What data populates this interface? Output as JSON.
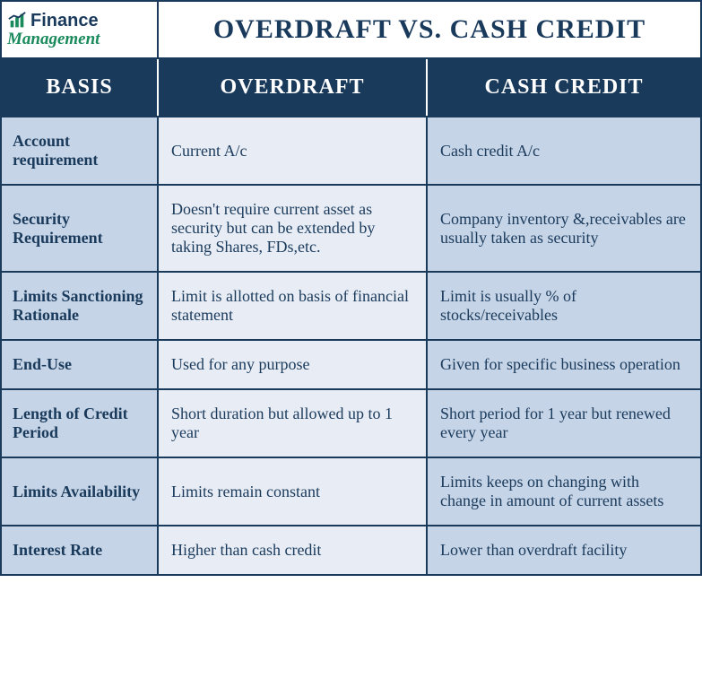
{
  "logo": {
    "line1": "Finance",
    "line2": "Management"
  },
  "title": "OVERDRAFT VS. CASH CREDIT",
  "headers": {
    "basis": "BASIS",
    "overdraft": "OVERDRAFT",
    "cashcredit": "CASH CREDIT"
  },
  "rows": [
    {
      "basis": "Account requirement",
      "overdraft": "Current A/c",
      "cashcredit": "Cash credit A/c"
    },
    {
      "basis": "Security Requirement",
      "overdraft": "Doesn't require current asset as security but can be extended by taking Shares, FDs,etc.",
      "cashcredit": "Company inventory &,receivables are usually taken as security"
    },
    {
      "basis": "Limits Sanctioning Rationale",
      "overdraft": "Limit is allotted on basis of financial statement",
      "cashcredit": "Limit is usually % of stocks/receivables"
    },
    {
      "basis": "End-Use",
      "overdraft": "Used for any purpose",
      "cashcredit": "Given for specific business operation"
    },
    {
      "basis": "Length of Credit Period",
      "overdraft": "Short duration but allowed up to 1 year",
      "cashcredit": "Short period for 1 year but renewed every year"
    },
    {
      "basis": "Limits Availability",
      "overdraft": "Limits remain constant",
      "cashcredit": "Limits keeps on changing with change in amount of current assets"
    },
    {
      "basis": "Interest Rate",
      "overdraft": "Higher than cash credit",
      "cashcredit": "Lower than overdraft facility"
    }
  ],
  "colors": {
    "dark_blue": "#1a3a5c",
    "light_blue": "#c5d4e6",
    "lighter_blue": "#e8edf5",
    "green": "#1a8a5c",
    "white": "#ffffff"
  }
}
